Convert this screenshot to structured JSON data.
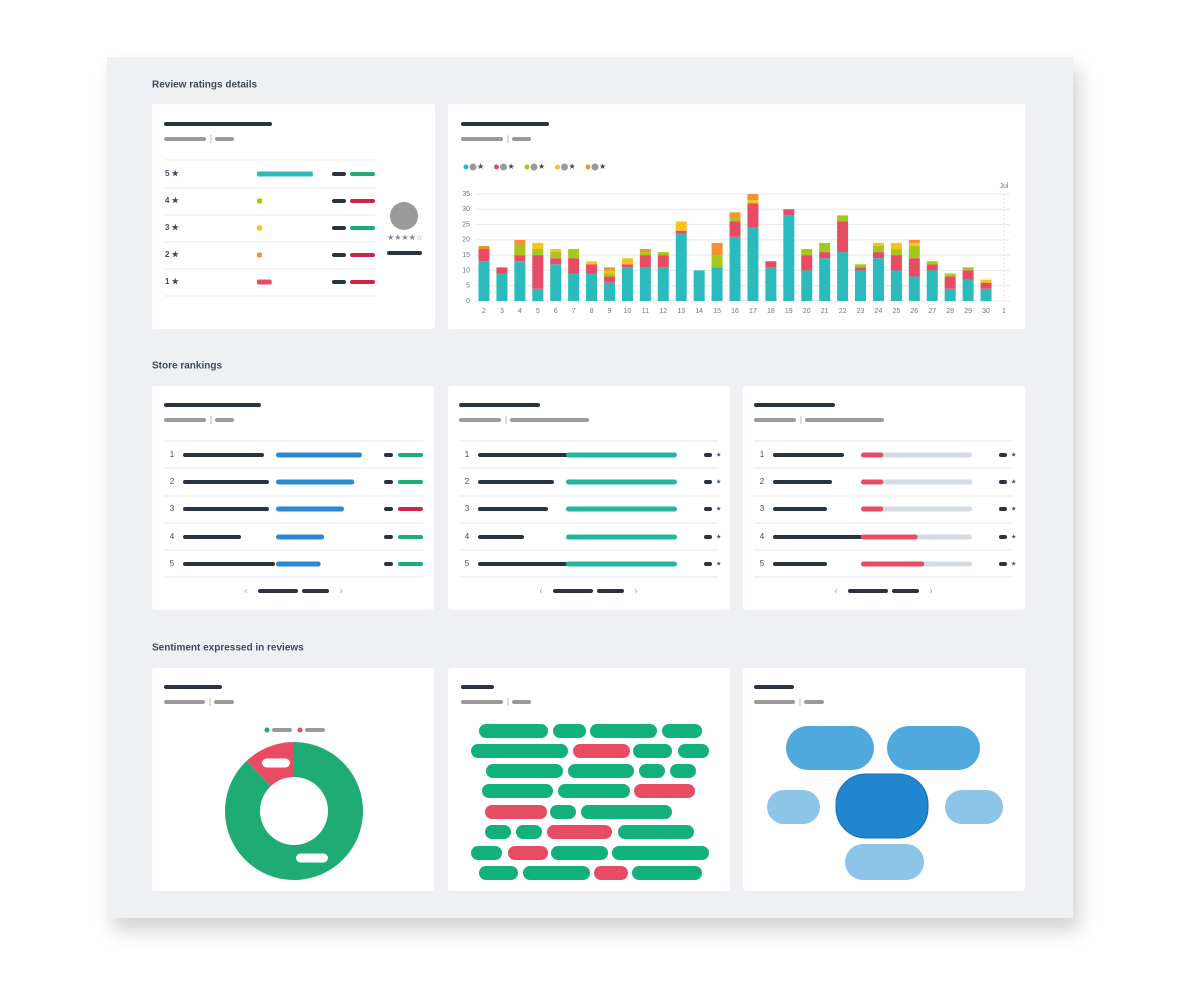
{
  "sections": [
    {
      "title": "Review ratings details"
    },
    {
      "title": "Store rankings"
    },
    {
      "title": "Sentiment expressed in reviews"
    }
  ],
  "rating_breakdown": {
    "labels": [
      "5 ★",
      "4 ★",
      "3 ★",
      "2 ★",
      "1 ★"
    ],
    "values": [
      65,
      6,
      6,
      6,
      17
    ],
    "colors": [
      "#2bbbbc",
      "#a5c81a",
      "#f5c518",
      "#f39232",
      "#e84c65"
    ],
    "average_stars": "★★★★☆"
  },
  "chart_data": {
    "type": "bar",
    "stacked": true,
    "annotation": "Jul",
    "categories": [
      "2",
      "3",
      "4",
      "5",
      "6",
      "7",
      "8",
      "9",
      "10",
      "11",
      "12",
      "13",
      "14",
      "15",
      "16",
      "17",
      "18",
      "19",
      "20",
      "21",
      "22",
      "23",
      "24",
      "25",
      "26",
      "27",
      "28",
      "29",
      "30",
      "1"
    ],
    "series": [
      {
        "name": "★",
        "color": "#2bbbbc",
        "values": [
          13,
          9,
          13,
          4,
          12,
          9,
          9,
          6,
          11,
          11,
          11,
          22,
          10,
          11,
          21,
          24,
          11,
          28,
          10,
          14,
          16,
          10,
          14,
          10,
          8,
          10,
          4,
          7,
          4,
          null
        ]
      },
      {
        "name": "★",
        "color": "#e84c65",
        "values": [
          4,
          2,
          2,
          11,
          2,
          5,
          3,
          2,
          1,
          4,
          4,
          1,
          0,
          0,
          5,
          8,
          2,
          2,
          5,
          2,
          10,
          1,
          2,
          5,
          6,
          2,
          4,
          3,
          2,
          null
        ]
      },
      {
        "name": "★",
        "color": "#a5c81a",
        "values": [
          0,
          0,
          3,
          2,
          2,
          3,
          0,
          1,
          0,
          1,
          1,
          0,
          0,
          4,
          1,
          0,
          0,
          0,
          2,
          3,
          2,
          1,
          2,
          2,
          4,
          1,
          1,
          1,
          0,
          null
        ]
      },
      {
        "name": "★",
        "color": "#f5c518",
        "values": [
          0,
          0,
          0,
          2,
          1,
          0,
          1,
          1,
          2,
          0,
          0,
          3,
          0,
          0,
          0,
          1,
          0,
          0,
          0,
          0,
          0,
          0,
          1,
          2,
          1,
          0,
          0,
          0,
          1,
          null
        ]
      },
      {
        "name": "★",
        "color": "#f39232",
        "values": [
          1,
          0,
          2,
          0,
          0,
          0,
          0,
          1,
          0,
          1,
          0,
          0,
          0,
          4,
          2,
          2,
          0,
          0,
          0,
          0,
          0,
          0,
          0,
          0,
          1,
          0,
          0,
          0,
          0,
          null
        ]
      }
    ],
    "ylim": [
      0,
      35
    ],
    "yticks": [
      0,
      5,
      10,
      15,
      20,
      25,
      30,
      35
    ],
    "grid": true
  },
  "rankings": [
    {
      "ranks": [
        1,
        2,
        3,
        4,
        5
      ],
      "values": [
        100,
        91,
        79,
        56,
        52
      ],
      "color": "#2b88d1"
    },
    {
      "ranks": [
        1,
        2,
        3,
        4,
        5
      ],
      "values": [
        100,
        100,
        100,
        100,
        100
      ],
      "color": "#25b59c",
      "marker": "★"
    },
    {
      "ranks": [
        1,
        2,
        3,
        4,
        5
      ],
      "values": [
        20,
        20,
        20,
        51,
        57
      ],
      "color": "#e84c65",
      "marker": "★"
    }
  ],
  "pagination": {
    "prev": "‹",
    "next": "›"
  },
  "sentiment": {
    "values": [
      88,
      12
    ],
    "colors": [
      "#1fab74",
      "#e84c65"
    ]
  }
}
